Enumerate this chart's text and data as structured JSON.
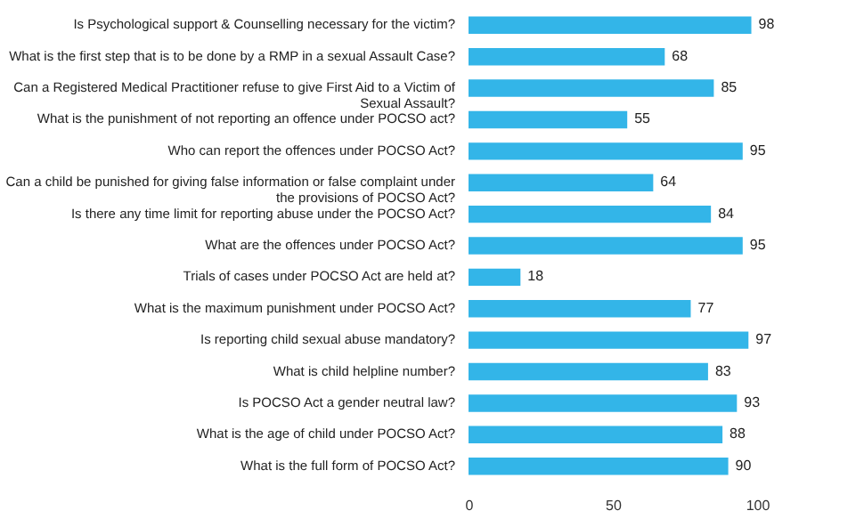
{
  "chart_data": {
    "type": "bar",
    "orientation": "horizontal",
    "color": "#33b5e8",
    "data_labels": true,
    "grid": false,
    "xlim": [
      0,
      100
    ],
    "xticks": [
      0,
      50,
      100
    ],
    "categories": [
      "Is Psychological support & Counselling necessary for the victim?",
      "What is the first step that is to be done by a RMP in a sexual Assault Case?",
      "Can a Registered Medical Practitioner refuse to give First Aid to a Victim of Sexual Assault?",
      "What is the punishment of not reporting an offence under POCSO act?",
      "Who can report the offences under POCSO Act?",
      "Can a child be punished for giving false information or false complaint under the provisions of POCSO Act?",
      "Is there any time limit for reporting abuse under the POCSO Act?",
      "What are the offences under POCSO Act?",
      "Trials of cases under POCSO Act are held at?",
      "What is the maximum punishment under POCSO Act?",
      "Is reporting child sexual abuse mandatory?",
      "What is child helpline number?",
      "Is POCSO Act a gender neutral law?",
      "What is the age of child under  POCSO Act?",
      "What is the full form of POCSO Act?"
    ],
    "values": [
      98,
      68,
      85,
      55,
      95,
      64,
      84,
      95,
      18,
      77,
      97,
      83,
      93,
      88,
      90
    ]
  }
}
